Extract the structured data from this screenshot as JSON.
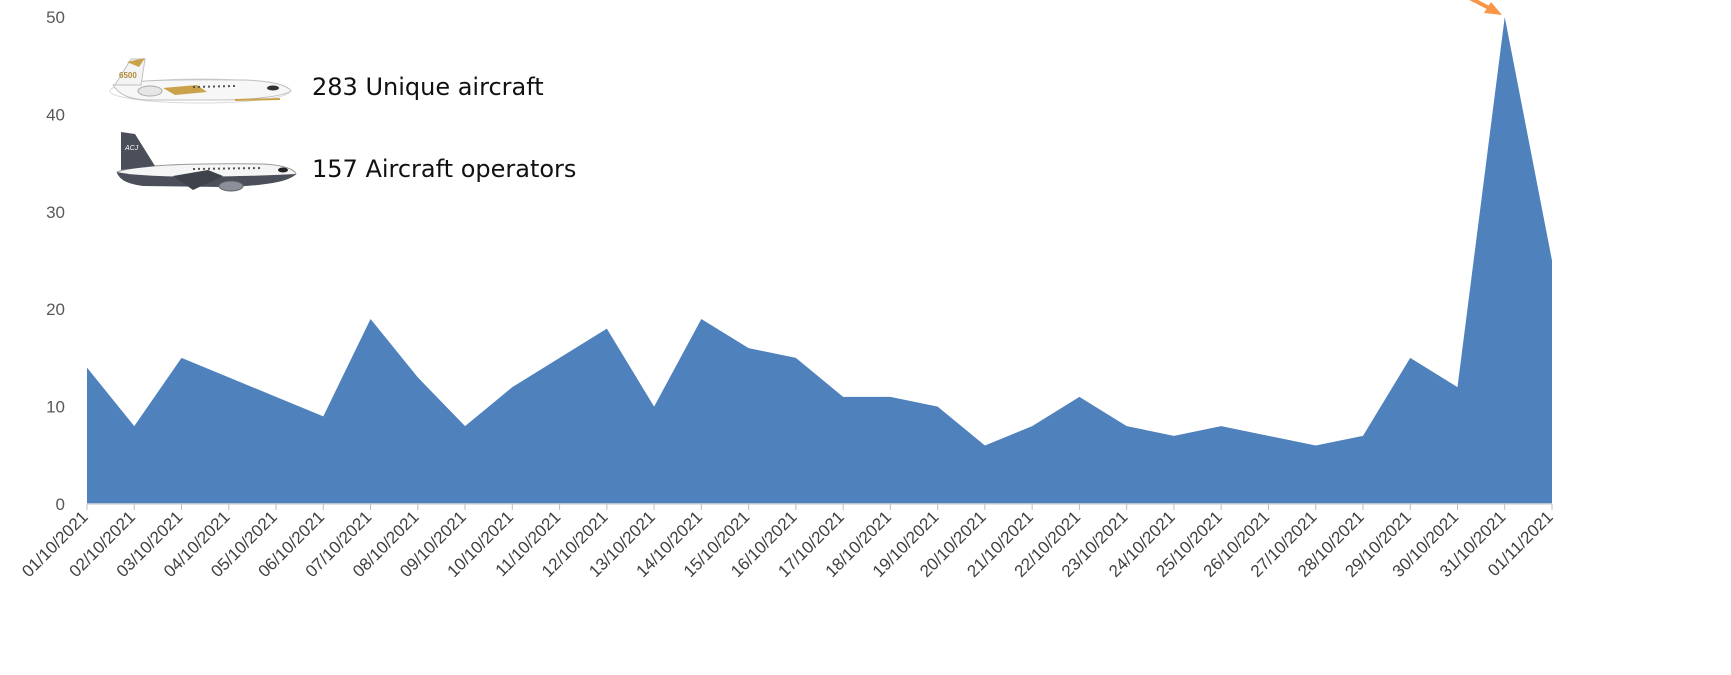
{
  "chart_data": {
    "type": "area",
    "title": "",
    "xlabel": "",
    "ylabel": "",
    "ylim": [
      0,
      50
    ],
    "yticks": [
      0,
      10,
      20,
      30,
      40,
      50
    ],
    "grid": false,
    "legend": "none",
    "categories": [
      "01/10/2021",
      "02/10/2021",
      "03/10/2021",
      "04/10/2021",
      "05/10/2021",
      "06/10/2021",
      "07/10/2021",
      "08/10/2021",
      "09/10/2021",
      "10/10/2021",
      "11/10/2021",
      "12/10/2021",
      "13/10/2021",
      "14/10/2021",
      "15/10/2021",
      "16/10/2021",
      "17/10/2021",
      "18/10/2021",
      "19/10/2021",
      "20/10/2021",
      "21/10/2021",
      "22/10/2021",
      "23/10/2021",
      "24/10/2021",
      "25/10/2021",
      "26/10/2021",
      "27/10/2021",
      "28/10/2021",
      "29/10/2021",
      "30/10/2021",
      "31/10/2021",
      "01/11/2021"
    ],
    "series": [
      {
        "values": [
          14,
          8,
          15,
          13,
          11,
          9,
          19,
          13,
          8,
          12,
          15,
          18,
          10,
          19,
          16,
          15,
          11,
          11,
          10,
          6,
          8,
          11,
          8,
          7,
          8,
          7,
          6,
          7,
          15,
          12,
          50,
          25
        ]
      }
    ],
    "colors": {
      "area": "#4f81bd",
      "annotation_arrow": "#f79646"
    }
  },
  "stats": {
    "unique_aircraft": "283 Unique aircraft",
    "aircraft_operators": "157 Aircraft operators"
  },
  "icons": {
    "aircraft_1": "business-jet-white-gold-icon",
    "aircraft_2": "business-jet-grey-white-icon"
  }
}
